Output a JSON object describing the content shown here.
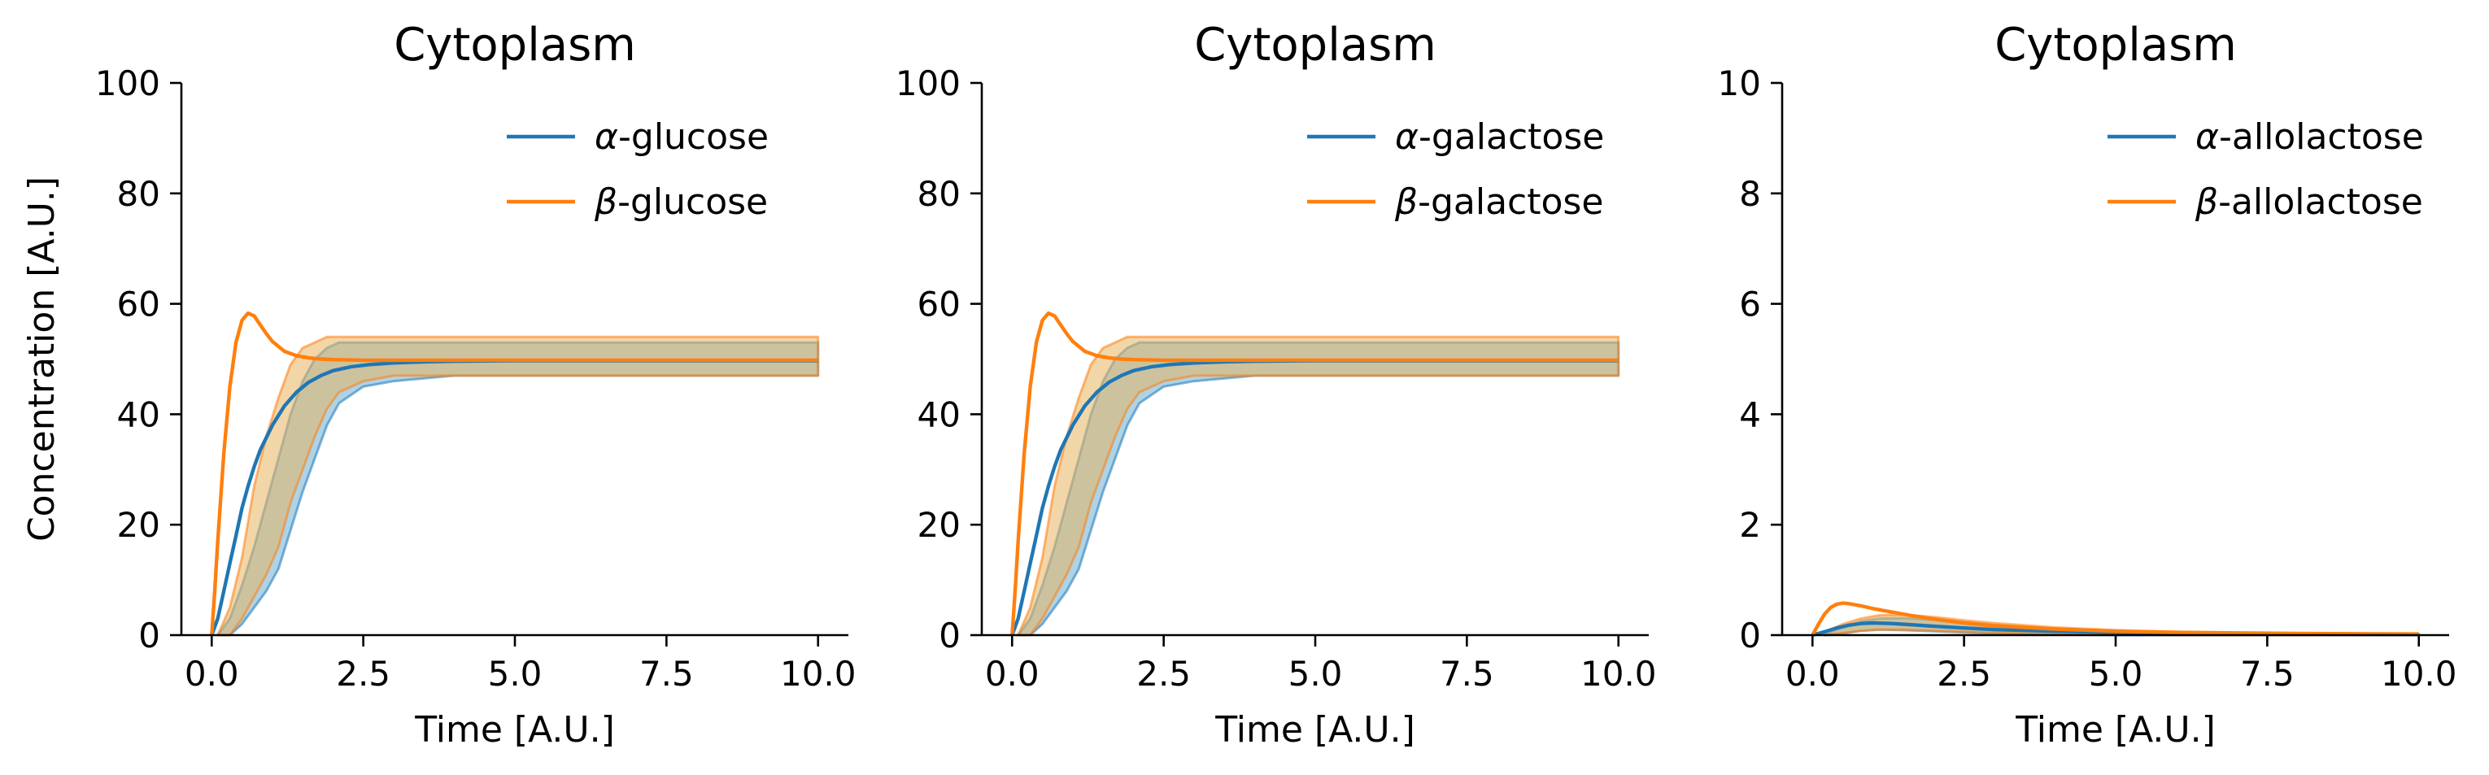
{
  "colors": {
    "alpha": "#1f77b4",
    "beta": "#ff7f0e",
    "alpha_band_fill": "#6aaed6",
    "beta_band_fill": "#e8b560",
    "overlap": "#8c8c4a"
  },
  "chart_data": [
    {
      "type": "line",
      "title": "Cytoplasm",
      "xlabel": "Time [A.U.]",
      "ylabel": "Concentration [A.U.]",
      "xlim": [
        -0.5,
        10.5
      ],
      "ylim": [
        0,
        100
      ],
      "xticks": [
        "0.0",
        "2.5",
        "5.0",
        "7.5",
        "10.0"
      ],
      "xtick_values": [
        0,
        2.5,
        5,
        7.5,
        10
      ],
      "yticks": [
        "0",
        "20",
        "40",
        "60",
        "80",
        "100"
      ],
      "ytick_values": [
        0,
        20,
        40,
        60,
        80,
        100
      ],
      "grid": false,
      "legend_position": "top-right",
      "series": [
        {
          "name": "α-glucose",
          "legend_letter": "α",
          "legend_suffix": "-glucose",
          "color_key": "alpha",
          "x": [
            0,
            0.1,
            0.2,
            0.3,
            0.4,
            0.5,
            0.6,
            0.7,
            0.8,
            1.0,
            1.2,
            1.4,
            1.6,
            1.8,
            2.0,
            2.3,
            2.6,
            3.0,
            3.5,
            4.0,
            5.0,
            6.0,
            7.0,
            8.0,
            9.0,
            10.0
          ],
          "y": [
            0,
            3,
            8,
            13,
            18,
            23,
            27,
            30.5,
            33.5,
            38,
            41.5,
            44,
            45.8,
            47,
            47.9,
            48.6,
            49,
            49.3,
            49.5,
            49.6,
            49.7,
            49.7,
            49.7,
            49.7,
            49.7,
            49.7
          ]
        },
        {
          "name": "β-glucose",
          "legend_letter": "β",
          "legend_suffix": "-glucose",
          "color_key": "beta",
          "x": [
            0,
            0.05,
            0.1,
            0.2,
            0.3,
            0.4,
            0.5,
            0.6,
            0.7,
            0.8,
            0.9,
            1.0,
            1.2,
            1.4,
            1.6,
            1.8,
            2.0,
            2.5,
            3.0,
            4.0,
            6.0,
            8.0,
            10.0
          ],
          "y": [
            0,
            8,
            17,
            33,
            45,
            53,
            57,
            58.3,
            57.8,
            56.2,
            54.6,
            53.2,
            51.4,
            50.6,
            50.2,
            50.0,
            49.9,
            49.8,
            49.8,
            49.8,
            49.8,
            49.8,
            49.8
          ]
        }
      ],
      "bands": [
        {
          "series": "α-glucose",
          "x": [
            0.1,
            0.3,
            0.5,
            0.7,
            0.9,
            1.1,
            1.3,
            1.5,
            1.7,
            1.9,
            2.1,
            2.5,
            3.0,
            4.0,
            5.0,
            6.0,
            7.0,
            8.0,
            9.0,
            10.0
          ],
          "lower": [
            0,
            0,
            2,
            5,
            8,
            12,
            19,
            26,
            32,
            38,
            42,
            45,
            46,
            47,
            47,
            47,
            47,
            47,
            47,
            47
          ],
          "upper": [
            0,
            3,
            9,
            16,
            24,
            32,
            40,
            46,
            50,
            52,
            53,
            53,
            53,
            53,
            53,
            53,
            53,
            53,
            53,
            53
          ]
        },
        {
          "series": "β-glucose",
          "x": [
            0.1,
            0.3,
            0.5,
            0.7,
            0.9,
            1.1,
            1.3,
            1.5,
            1.7,
            1.9,
            2.1,
            2.5,
            3.0,
            4.0,
            5.0,
            6.0,
            7.0,
            8.0,
            9.0,
            10.0
          ],
          "lower": [
            0,
            0,
            3,
            7,
            11,
            16,
            24,
            30,
            36,
            41,
            44,
            46,
            47,
            47,
            47,
            47,
            47,
            47,
            47,
            47
          ],
          "upper": [
            0,
            5,
            14,
            27,
            36,
            43,
            49,
            52,
            53,
            54,
            54,
            54,
            54,
            54,
            54,
            54,
            54,
            54,
            54,
            54
          ]
        }
      ]
    },
    {
      "type": "line",
      "title": "Cytoplasm",
      "xlabel": "Time [A.U.]",
      "ylabel": "",
      "xlim": [
        -0.5,
        10.5
      ],
      "ylim": [
        0,
        100
      ],
      "xticks": [
        "0.0",
        "2.5",
        "5.0",
        "7.5",
        "10.0"
      ],
      "xtick_values": [
        0,
        2.5,
        5,
        7.5,
        10
      ],
      "yticks": [
        "0",
        "20",
        "40",
        "60",
        "80",
        "100"
      ],
      "ytick_values": [
        0,
        20,
        40,
        60,
        80,
        100
      ],
      "grid": false,
      "legend_position": "top-right",
      "series": [
        {
          "name": "α-galactose",
          "legend_letter": "α",
          "legend_suffix": "-galactose",
          "color_key": "alpha",
          "x": [
            0,
            0.1,
            0.2,
            0.3,
            0.4,
            0.5,
            0.6,
            0.7,
            0.8,
            1.0,
            1.2,
            1.4,
            1.6,
            1.8,
            2.0,
            2.3,
            2.6,
            3.0,
            3.5,
            4.0,
            5.0,
            6.0,
            7.0,
            8.0,
            9.0,
            10.0
          ],
          "y": [
            0,
            3,
            8,
            13,
            18,
            23,
            27,
            30.5,
            33.5,
            38,
            41.5,
            44,
            45.8,
            47,
            47.9,
            48.6,
            49,
            49.3,
            49.5,
            49.6,
            49.7,
            49.7,
            49.7,
            49.7,
            49.7,
            49.7
          ]
        },
        {
          "name": "β-galactose",
          "legend_letter": "β",
          "legend_suffix": "-galactose",
          "color_key": "beta",
          "x": [
            0,
            0.05,
            0.1,
            0.2,
            0.3,
            0.4,
            0.5,
            0.6,
            0.7,
            0.8,
            0.9,
            1.0,
            1.2,
            1.4,
            1.6,
            1.8,
            2.0,
            2.5,
            3.0,
            4.0,
            6.0,
            8.0,
            10.0
          ],
          "y": [
            0,
            8,
            17,
            33,
            45,
            53,
            57,
            58.3,
            57.8,
            56.2,
            54.6,
            53.2,
            51.4,
            50.6,
            50.2,
            50.0,
            49.9,
            49.8,
            49.8,
            49.8,
            49.8,
            49.8,
            49.8
          ]
        }
      ],
      "bands": [
        {
          "series": "α-galactose",
          "x": [
            0.1,
            0.3,
            0.5,
            0.7,
            0.9,
            1.1,
            1.3,
            1.5,
            1.7,
            1.9,
            2.1,
            2.5,
            3.0,
            4.0,
            5.0,
            6.0,
            7.0,
            8.0,
            9.0,
            10.0
          ],
          "lower": [
            0,
            0,
            2,
            5,
            8,
            12,
            19,
            26,
            32,
            38,
            42,
            45,
            46,
            47,
            47,
            47,
            47,
            47,
            47,
            47
          ],
          "upper": [
            0,
            3,
            9,
            16,
            24,
            32,
            40,
            46,
            50,
            52,
            53,
            53,
            53,
            53,
            53,
            53,
            53,
            53,
            53,
            53
          ]
        },
        {
          "series": "β-galactose",
          "x": [
            0.1,
            0.3,
            0.5,
            0.7,
            0.9,
            1.1,
            1.3,
            1.5,
            1.7,
            1.9,
            2.1,
            2.5,
            3.0,
            4.0,
            5.0,
            6.0,
            7.0,
            8.0,
            9.0,
            10.0
          ],
          "lower": [
            0,
            0,
            3,
            7,
            11,
            16,
            24,
            30,
            36,
            41,
            44,
            46,
            47,
            47,
            47,
            47,
            47,
            47,
            47,
            47
          ],
          "upper": [
            0,
            5,
            14,
            27,
            36,
            43,
            49,
            52,
            53,
            54,
            54,
            54,
            54,
            54,
            54,
            54,
            54,
            54,
            54,
            54
          ]
        }
      ]
    },
    {
      "type": "line",
      "title": "Cytoplasm",
      "xlabel": "Time [A.U.]",
      "ylabel": "",
      "xlim": [
        -0.5,
        10.5
      ],
      "ylim": [
        0,
        10
      ],
      "xticks": [
        "0.0",
        "2.5",
        "5.0",
        "7.5",
        "10.0"
      ],
      "xtick_values": [
        0,
        2.5,
        5,
        7.5,
        10
      ],
      "yticks": [
        "0",
        "2",
        "4",
        "6",
        "8",
        "10"
      ],
      "ytick_values": [
        0,
        2,
        4,
        6,
        8,
        10
      ],
      "grid": false,
      "legend_position": "top-right",
      "series": [
        {
          "name": "α-allolactose",
          "legend_letter": "α",
          "legend_suffix": "-allolactose",
          "color_key": "alpha",
          "x": [
            0,
            0.2,
            0.4,
            0.6,
            0.8,
            1.0,
            1.3,
            1.6,
            2.0,
            2.5,
            3.0,
            4.0,
            5.0,
            6.0,
            7.0,
            8.0,
            9.0,
            10.0
          ],
          "y": [
            0,
            0.06,
            0.13,
            0.18,
            0.21,
            0.22,
            0.21,
            0.19,
            0.16,
            0.13,
            0.1,
            0.07,
            0.05,
            0.035,
            0.025,
            0.02,
            0.015,
            0.01
          ]
        },
        {
          "name": "β-allolactose",
          "legend_letter": "β",
          "legend_suffix": "-allolactose",
          "color_key": "beta",
          "x": [
            0,
            0.1,
            0.2,
            0.3,
            0.4,
            0.5,
            0.6,
            0.8,
            1.0,
            1.3,
            1.6,
            2.0,
            2.5,
            3.0,
            4.0,
            5.0,
            6.0,
            7.0,
            8.0,
            9.0,
            10.0
          ],
          "y": [
            0,
            0.2,
            0.38,
            0.5,
            0.56,
            0.58,
            0.57,
            0.53,
            0.48,
            0.42,
            0.36,
            0.29,
            0.22,
            0.17,
            0.11,
            0.07,
            0.05,
            0.04,
            0.03,
            0.025,
            0.02
          ]
        }
      ],
      "bands": [
        {
          "series": "α-allolactose",
          "x": [
            0.2,
            0.5,
            0.8,
            1.1,
            1.5,
            2.0,
            2.5,
            3.0,
            4.0,
            5.0,
            6.0,
            7.0,
            8.0,
            9.0,
            10.0
          ],
          "lower": [
            0,
            0.03,
            0.08,
            0.1,
            0.09,
            0.07,
            0.05,
            0.03,
            0.01,
            0,
            0,
            0,
            0,
            0,
            0
          ],
          "upper": [
            0.02,
            0.14,
            0.25,
            0.3,
            0.31,
            0.28,
            0.23,
            0.18,
            0.12,
            0.08,
            0.05,
            0.04,
            0.03,
            0.02,
            0.02
          ]
        },
        {
          "series": "β-allolactose",
          "x": [
            0.2,
            0.5,
            0.8,
            1.1,
            1.5,
            2.0,
            2.5,
            3.0,
            4.0,
            5.0,
            6.0,
            7.0,
            8.0,
            9.0,
            10.0
          ],
          "lower": [
            0,
            0.04,
            0.08,
            0.1,
            0.1,
            0.08,
            0.06,
            0.04,
            0.02,
            0.01,
            0,
            0,
            0,
            0,
            0
          ],
          "upper": [
            0.05,
            0.2,
            0.3,
            0.36,
            0.37,
            0.33,
            0.27,
            0.22,
            0.14,
            0.09,
            0.06,
            0.04,
            0.03,
            0.02,
            0.02
          ]
        }
      ]
    }
  ]
}
